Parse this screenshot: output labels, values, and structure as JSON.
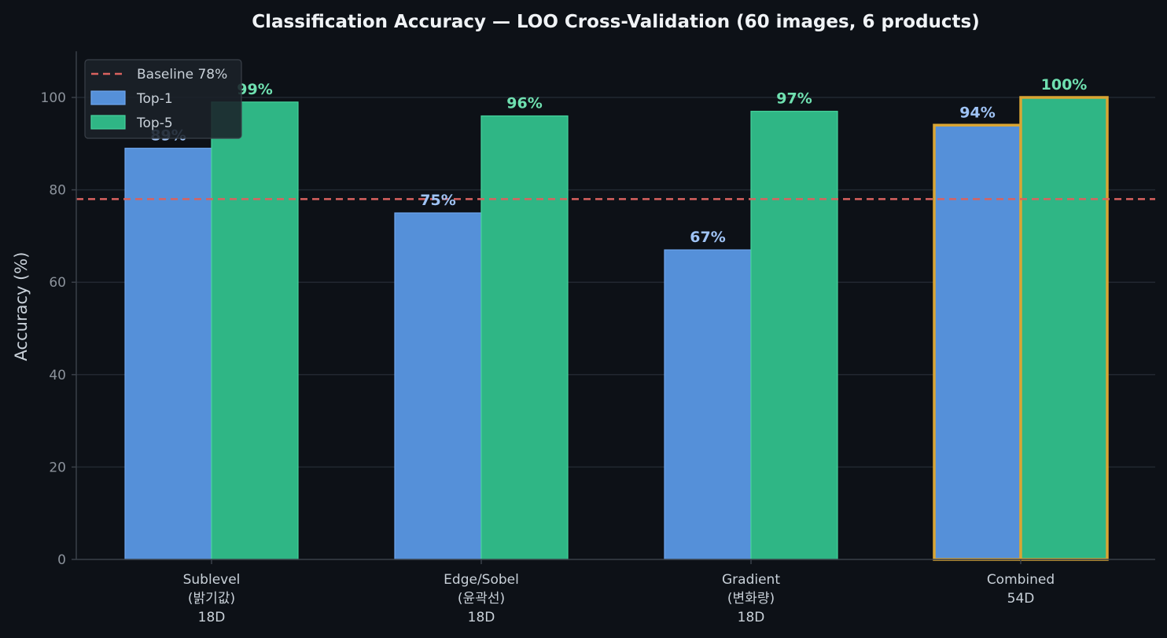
{
  "chart_data": {
    "type": "bar",
    "title": "Classification Accuracy — LOO Cross-Validation (60 images, 6 products)",
    "ylabel": "Accuracy (%)",
    "xlabel": "",
    "ylim": [
      0,
      110
    ],
    "yticks": [
      0,
      20,
      40,
      60,
      80,
      100
    ],
    "grid": true,
    "legend_position": "top-left",
    "categories": [
      [
        "Sublevel",
        "(밝기값)",
        "18D"
      ],
      [
        "Edge/Sobel",
        "(윤곽선)",
        "18D"
      ],
      [
        "Gradient",
        "(변화량)",
        "18D"
      ],
      [
        "Combined",
        "54D"
      ]
    ],
    "series": [
      {
        "name": "Top-1",
        "values": [
          89,
          75,
          67,
          94
        ],
        "labels": [
          "89%",
          "75%",
          "67%",
          "94%"
        ],
        "color": "#5590d9",
        "edge_color": "#6ea6ee",
        "label_color": "#9fc3f5"
      },
      {
        "name": "Top-5",
        "values": [
          99,
          96,
          97,
          100
        ],
        "labels": [
          "99%",
          "96%",
          "97%",
          "100%"
        ],
        "color": "#2fb685",
        "edge_color": "#46d39d",
        "label_color": "#6fe0b0"
      }
    ],
    "baseline": {
      "label": "Baseline 78%",
      "value": 78,
      "color": "#d9625f"
    },
    "highlight_category_index": 3,
    "highlight_color": "#d9a534"
  },
  "colors": {
    "background": "#0d1117",
    "grid": "#222831",
    "axis": "#3a4049",
    "tick_text": "#8b929b",
    "label_text": "#c9d1d9",
    "title_text": "#f0f3f6"
  }
}
